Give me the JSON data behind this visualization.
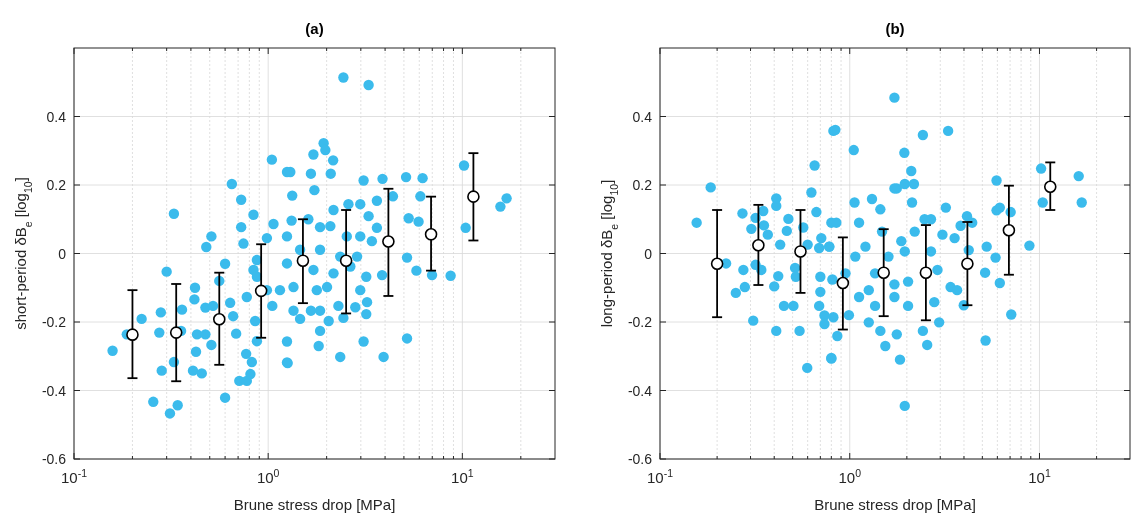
{
  "chart_data": [
    {
      "type": "scatter",
      "title": "(a)",
      "xlabel": "Brune stress drop [MPa]",
      "ylabel": "short-period δB$_{e}$ [log$_{10}$]",
      "log": "x",
      "grid": true,
      "marker": "circle",
      "xlim": [
        0.1,
        30
      ],
      "ylim": [
        -0.6,
        0.6
      ],
      "xticks": [
        {
          "value": 0.1,
          "label": "10$^{-1}$"
        },
        {
          "value": 0.2,
          "label": null
        },
        {
          "value": 0.3,
          "label": null
        },
        {
          "value": 0.4,
          "label": null
        },
        {
          "value": 0.5,
          "label": null
        },
        {
          "value": 0.6,
          "label": null
        },
        {
          "value": 0.7,
          "label": null
        },
        {
          "value": 0.8,
          "label": null
        },
        {
          "value": 0.9,
          "label": null
        },
        {
          "value": 1,
          "label": "10$^{0}$"
        },
        {
          "value": 2,
          "label": null
        },
        {
          "value": 3,
          "label": null
        },
        {
          "value": 4,
          "label": null
        },
        {
          "value": 5,
          "label": null
        },
        {
          "value": 6,
          "label": null
        },
        {
          "value": 7,
          "label": null
        },
        {
          "value": 8,
          "label": null
        },
        {
          "value": 9,
          "label": null
        },
        {
          "value": 10,
          "label": "10$^{1}$"
        },
        {
          "value": 20,
          "label": null
        }
      ],
      "yticks": [
        -0.6,
        -0.4,
        -0.2,
        0,
        0.2,
        0.4
      ],
      "series": [
        {
          "type": "scatter",
          "color": "#3bbbec",
          "x": [
            0.158,
            0.187,
            0.223,
            0.256,
            0.28,
            0.275,
            0.283,
            0.3,
            0.327,
            0.312,
            0.342,
            0.327,
            0.356,
            0.36,
            0.417,
            0.42,
            0.43,
            0.425,
            0.41,
            0.455,
            0.48,
            0.51,
            0.475,
            0.475,
            0.51,
            0.52,
            0.56,
            0.6,
            0.6,
            0.65,
            0.726,
            0.84,
            0.726,
            0.746,
            0.71,
            0.776,
            0.81,
            0.824,
            0.77,
            0.684,
            0.66,
            0.637,
            0.776,
            0.857,
            0.875,
            0.875,
            0.875,
            0.985,
            1.045,
            1.065,
            1.05,
            1.25,
            1.25,
            0.985,
            0.84,
            2.44,
            3.29,
            1.93,
            1.97,
            1.71,
            2.16,
            1.3,
            1.66,
            2.1,
            1.33,
            1.73,
            3.1,
            3.88,
            5.13,
            6.24,
            10.2,
            6.08,
            3.63,
            4.39,
            15.7,
            16.9,
            10.4,
            5.29,
            5.95,
            6.98,
            8.7,
            5.8,
            5.19,
            5.19,
            3.93,
            3.1,
            2.35,
            3.23,
            3.2,
            2.81,
            3.86,
            3.2,
            3.63,
            3.29,
            2.98,
            2.59,
            2.17,
            2.09,
            1.85,
            1.61,
            1.32,
            1.25,
            2.98,
            3.42,
            2.87,
            2.35,
            1.85,
            1.46,
            1.25,
            1.71,
            2.17,
            2.01,
            1.35,
            1.15,
            1.78,
            1.35,
            1.66,
            1.85,
            1.46,
            2.3,
            2.05,
            1.85,
            1.82,
            1.25,
            1.26,
            2.44,
            2.98,
            2.65,
            2.54
          ],
          "values": [
            -0.284,
            -0.236,
            -0.191,
            -0.433,
            -0.172,
            -0.231,
            -0.342,
            -0.053,
            0.116,
            -0.467,
            -0.443,
            -0.317,
            -0.226,
            -0.164,
            -0.134,
            -0.1,
            -0.236,
            -0.287,
            -0.342,
            -0.35,
            0.019,
            0.05,
            -0.158,
            -0.236,
            -0.267,
            -0.153,
            -0.08,
            -0.03,
            -0.421,
            0.203,
            0.157,
            0.113,
            0.077,
            0.029,
            -0.372,
            -0.372,
            -0.352,
            -0.317,
            -0.293,
            -0.234,
            -0.183,
            -0.144,
            -0.127,
            -0.197,
            -0.256,
            -0.068,
            -0.019,
            0.045,
            0.274,
            0.086,
            -0.153,
            0.238,
            -0.318,
            -0.107,
            -0.048,
            0.514,
            0.492,
            0.322,
            0.302,
            0.289,
            0.272,
            0.238,
            0.233,
            0.233,
            0.169,
            0.185,
            0.213,
            0.218,
            0.223,
            0.22,
            0.257,
            0.167,
            0.154,
            0.167,
            0.137,
            0.161,
            0.075,
            0.103,
            0.093,
            -0.063,
            -0.065,
            -0.05,
            -0.012,
            -0.248,
            -0.302,
            -0.257,
            -0.302,
            -0.142,
            -0.177,
            -0.157,
            -0.063,
            -0.068,
            0.075,
            0.109,
            0.144,
            0.144,
            0.127,
            0.08,
            0.077,
            0.1,
            0.096,
            0.05,
            0.05,
            0.036,
            -0.009,
            -0.009,
            0.011,
            0.011,
            -0.029,
            -0.048,
            -0.058,
            -0.098,
            -0.098,
            -0.107,
            -0.107,
            -0.167,
            -0.167,
            -0.167,
            -0.191,
            -0.153,
            -0.197,
            -0.226,
            -0.27,
            -0.257,
            -0.32,
            -0.188,
            -0.107,
            -0.038,
            0.05
          ]
        },
        {
          "type": "scatter",
          "color": "#000000",
          "x": [
            0.2,
            0.336,
            0.56,
            0.92,
            1.51,
            2.52,
            4.16,
            6.9,
            11.4
          ],
          "values": [
            -0.237,
            -0.231,
            -0.192,
            -0.109,
            -0.021,
            -0.021,
            0.035,
            0.056,
            0.166
          ],
          "errors": [
            [
              -0.364,
              -0.107
            ],
            [
              -0.373,
              -0.089
            ],
            [
              -0.325,
              -0.056
            ],
            [
              -0.246,
              0.027
            ],
            [
              -0.145,
              0.1
            ],
            [
              -0.175,
              0.127
            ],
            [
              -0.124,
              0.189
            ],
            [
              -0.05,
              0.166
            ],
            [
              0.038,
              0.293
            ]
          ]
        }
      ]
    },
    {
      "type": "scatter",
      "title": "(b)",
      "xlabel": "Brune stress drop [MPa]",
      "ylabel": "long-period δB$_{e}$ [log$_{10}$]",
      "log": "x",
      "grid": true,
      "marker": "circle",
      "xlim": [
        0.1,
        30
      ],
      "ylim": [
        -0.6,
        0.6
      ],
      "xticks": [
        {
          "value": 0.1,
          "label": "10$^{-1}$"
        },
        {
          "value": 0.2,
          "label": null
        },
        {
          "value": 0.3,
          "label": null
        },
        {
          "value": 0.4,
          "label": null
        },
        {
          "value": 0.5,
          "label": null
        },
        {
          "value": 0.6,
          "label": null
        },
        {
          "value": 0.7,
          "label": null
        },
        {
          "value": 0.8,
          "label": null
        },
        {
          "value": 0.9,
          "label": null
        },
        {
          "value": 1,
          "label": "10$^{0}$"
        },
        {
          "value": 2,
          "label": null
        },
        {
          "value": 3,
          "label": null
        },
        {
          "value": 4,
          "label": null
        },
        {
          "value": 5,
          "label": null
        },
        {
          "value": 6,
          "label": null
        },
        {
          "value": 7,
          "label": null
        },
        {
          "value": 8,
          "label": null
        },
        {
          "value": 9,
          "label": null
        },
        {
          "value": 10,
          "label": "10$^{1}$"
        },
        {
          "value": 20,
          "label": null
        }
      ],
      "yticks": [
        -0.6,
        -0.4,
        -0.2,
        0,
        0.2,
        0.4
      ],
      "series": [
        {
          "type": "scatter",
          "color": "#3bbbec",
          "x": [
            0.156,
            0.185,
            0.223,
            0.251,
            0.275,
            0.28,
            0.272,
            0.31,
            0.303,
            0.319,
            0.35,
            0.353,
            0.37,
            0.319,
            0.342,
            0.4,
            0.42,
            0.41,
            0.41,
            0.41,
            0.43,
            0.45,
            0.475,
            0.466,
            0.505,
            0.515,
            0.52,
            0.544,
            0.597,
            0.569,
            0.6,
            0.628,
            0.653,
            0.667,
            0.708,
            0.69,
            0.69,
            0.7,
            0.7,
            0.736,
            0.736,
            0.8,
            0.82,
            0.78,
            0.81,
            0.8,
            0.84,
            1.05,
            1.06,
            0.8,
            0.86,
            0.85,
            0.82,
            0.99,
            1.31,
            1.45,
            1.72,
            1.77,
            1.72,
            1.95,
            1.94,
            2.11,
            2.18,
            2.13,
            2.43,
            3.3,
            3.21,
            1.95,
            1.84,
            1.54,
            1.45,
            1.77,
            1.26,
            2.43,
            2.56,
            2.96,
            2.2,
            1.95,
            2.03,
            2.03,
            1.72,
            1.36,
            1.26,
            1.07,
            1.12,
            1.21,
            1.48,
            1.87,
            2.68,
            2.9,
            3.4,
            3.68,
            2.79,
            2.48,
            2.68,
            3.08,
            3.57,
            3.84,
            4.15,
            4.42,
            4.24,
            3.99,
            5.17,
            5.27,
            5.94,
            5.94,
            6.18,
            6.18,
            7.1,
            7.05,
            8.85,
            5.2,
            5.87,
            10.2,
            10.4,
            16.1,
            16.7,
            0.95,
            0.78,
            1.12,
            1.6,
            1.72,
            1.36
          ],
          "values": [
            0.09,
            0.193,
            -0.029,
            -0.115,
            -0.048,
            -0.098,
            0.117,
            -0.196,
            0.072,
            0.104,
            0.124,
            0.082,
            0.055,
            -0.033,
            -0.048,
            -0.096,
            -0.066,
            0.139,
            0.161,
            -0.226,
            0.026,
            -0.153,
            0.101,
            0.066,
            -0.153,
            -0.042,
            -0.068,
            -0.226,
            -0.334,
            0.076,
            0.026,
            0.178,
            0.257,
            0.121,
            0.045,
            0.016,
            -0.153,
            -0.112,
            -0.068,
            -0.181,
            -0.206,
            -0.305,
            0.358,
            0.02,
            -0.076,
            0.09,
            0.361,
            0.302,
            0.149,
            -0.307,
            -0.241,
            0.09,
            -0.186,
            -0.18,
            0.159,
            0.129,
            0.455,
            0.19,
            0.19,
            0.203,
            0.294,
            0.241,
            0.203,
            0.149,
            0.346,
            0.358,
            0.134,
            -0.445,
            -0.31,
            -0.27,
            -0.226,
            -0.236,
            -0.201,
            -0.226,
            -0.267,
            -0.201,
            0.064,
            0.006,
            -0.082,
            -0.153,
            -0.127,
            -0.058,
            -0.107,
            -0.009,
            -0.127,
            0.02,
            0.064,
            0.036,
            0.006,
            -0.048,
            -0.098,
            -0.107,
            -0.142,
            0.1,
            0.1,
            0.055,
            0.045,
            0.081,
            0.109,
            0.09,
            0.01,
            -0.151,
            -0.056,
            0.02,
            0.213,
            0.126,
            0.134,
            -0.086,
            -0.178,
            0.121,
            0.023,
            -0.254,
            -0.012,
            0.248,
            0.149,
            0.226,
            0.149,
            -0.058,
            0.02,
            0.09,
            -0.009,
            -0.09,
            -0.153
          ]
        },
        {
          "type": "scatter",
          "color": "#000000",
          "x": [
            0.2,
            0.33,
            0.55,
            0.92,
            1.51,
            2.52,
            4.17,
            6.9,
            11.4
          ],
          "values": [
            -0.03,
            0.024,
            0.006,
            -0.086,
            -0.056,
            -0.056,
            -0.03,
            0.068,
            0.195
          ],
          "errors": [
            [
              -0.186,
              0.127
            ],
            [
              -0.092,
              0.142
            ],
            [
              -0.115,
              0.127
            ],
            [
              -0.222,
              0.047
            ],
            [
              -0.183,
              0.071
            ],
            [
              -0.195,
              0.083
            ],
            [
              -0.151,
              0.092
            ],
            [
              -0.062,
              0.198
            ],
            [
              0.127,
              0.266
            ]
          ]
        }
      ]
    }
  ]
}
